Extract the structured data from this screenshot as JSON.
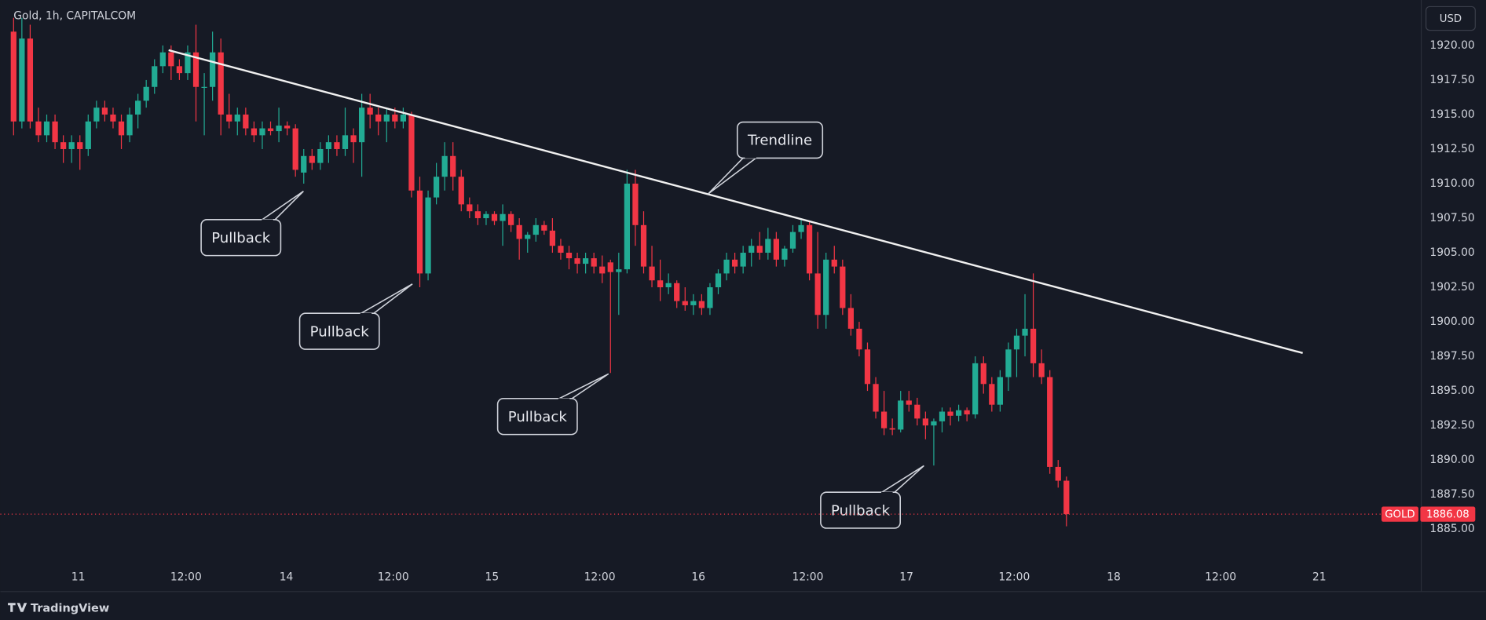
{
  "chart_data": {
    "type": "candlestick",
    "title": "Gold, 1h, CAPITALCOM",
    "currency": "USD",
    "symbol_label": "GOLD",
    "last_price": 1886.08,
    "brand": "TradingView",
    "up_color": "#22ab94",
    "down_color": "#f23645",
    "grid": false,
    "x": [
      0,
      1,
      2,
      3,
      4,
      5,
      6,
      7,
      8,
      9,
      10,
      11,
      12,
      13,
      14,
      15,
      16,
      17,
      18,
      19,
      20,
      21,
      22,
      23,
      24,
      25,
      26,
      27,
      28,
      29,
      30,
      31,
      32,
      33,
      34,
      35,
      36,
      37,
      38,
      39,
      40,
      41,
      42,
      43,
      44,
      45,
      46,
      47,
      48,
      49,
      50,
      51,
      52,
      53,
      54,
      55,
      56,
      57,
      58,
      59,
      60,
      61,
      62,
      63,
      64,
      65,
      66,
      67,
      68,
      69,
      70,
      71,
      72,
      73,
      74,
      75,
      76,
      77,
      78,
      79,
      80,
      81,
      82,
      83,
      84,
      85,
      86,
      87,
      88,
      89,
      90,
      91,
      92,
      93,
      94,
      95,
      96,
      97,
      98,
      99,
      100,
      101,
      102,
      103,
      104,
      105,
      106,
      107,
      108,
      109,
      110,
      111,
      112,
      113,
      114,
      115,
      116,
      117,
      118,
      119,
      120,
      121,
      122,
      123,
      124,
      125,
      126,
      127
    ],
    "open": [
      1921,
      1914.5,
      1920.5,
      1914.5,
      1913.5,
      1914.5,
      1913,
      1912.5,
      1913,
      1912.5,
      1914.5,
      1915.5,
      1915,
      1914.5,
      1913.5,
      1915,
      1916,
      1917,
      1918.5,
      1919.5,
      1918.5,
      1918,
      1919.5,
      1917,
      1917,
      1919.5,
      1915,
      1914.5,
      1915,
      1914,
      1913.5,
      1914,
      1913.8,
      1914.2,
      1914,
      1910.8,
      1912,
      1911.5,
      1912.5,
      1913,
      1912.5,
      1913.5,
      1913,
      1915.5,
      1915,
      1914.5,
      1915,
      1914.5,
      1915,
      1909.5,
      1903.5,
      1909,
      1910.5,
      1912,
      1910.5,
      1908.5,
      1908,
      1907.5,
      1907.8,
      1907.3,
      1907.8,
      1907,
      1906,
      1906.3,
      1907,
      1906.6,
      1905.5,
      1905,
      1904.6,
      1904.2,
      1904.6,
      1904,
      1904.3,
      1903.6,
      1903.8,
      1910,
      1907,
      1904,
      1903,
      1902.5,
      1902.8,
      1901.5,
      1901.2,
      1901.5,
      1901,
      1902.5,
      1903.5,
      1904.5,
      1904,
      1905,
      1905.5,
      1905,
      1906,
      1904.5,
      1905.3,
      1906.5,
      1907,
      1903.5,
      1900.5,
      1904.5,
      1904,
      1901,
      1899.5,
      1898,
      1895.5,
      1893.5,
      1892.3,
      1892.2,
      1894.3,
      1894,
      1893,
      1892.5,
      1892.8,
      1893.5,
      1893.2,
      1893.6,
      1893.3,
      1897,
      1895.5,
      1894,
      1896,
      1898,
      1899,
      1899.5,
      1897,
      1896,
      1889.5,
      1888.5
    ],
    "high": [
      1922,
      1922,
      1921.5,
      1915.5,
      1915,
      1915,
      1913.5,
      1913.5,
      1913.5,
      1915,
      1916,
      1916,
      1915.5,
      1915,
      1915.5,
      1916.5,
      1917.5,
      1919,
      1920,
      1920,
      1919,
      1920,
      1921.5,
      1918,
      1921,
      1920.5,
      1916.5,
      1915.5,
      1915.5,
      1914.5,
      1914.5,
      1914.5,
      1915.5,
      1914.5,
      1914.3,
      1912.5,
      1912.5,
      1913,
      1913.5,
      1913.5,
      1915.5,
      1914,
      1916.5,
      1916.5,
      1915.5,
      1915.5,
      1915.5,
      1915.5,
      1915.2,
      1910.5,
      1909.5,
      1911.5,
      1913,
      1913,
      1911,
      1909,
      1908.5,
      1908,
      1908,
      1908.5,
      1908,
      1907.5,
      1906.5,
      1907.5,
      1907.3,
      1907.5,
      1906,
      1905.5,
      1905,
      1905,
      1905,
      1904.8,
      1904.5,
      1905,
      1911,
      1911,
      1908,
      1905.5,
      1904.5,
      1903.5,
      1903,
      1902.5,
      1902,
      1902,
      1902.8,
      1903.8,
      1905,
      1905,
      1905.5,
      1906,
      1906.5,
      1906.8,
      1906.5,
      1905.5,
      1907,
      1907.5,
      1907.3,
      1906.5,
      1905,
      1905.5,
      1904.5,
      1902,
      1900,
      1898.5,
      1896,
      1895,
      1893,
      1895,
      1895,
      1894.5,
      1893.5,
      1893,
      1893.8,
      1893.8,
      1894,
      1893.8,
      1897.5,
      1897.5,
      1896,
      1896.5,
      1898.5,
      1899.5,
      1902,
      1903.5,
      1898,
      1896.5,
      1890,
      1888.8
    ],
    "low": [
      1913.5,
      1914,
      1914,
      1913,
      1913,
      1912.5,
      1911.5,
      1911.5,
      1911,
      1912,
      1914,
      1914.5,
      1914,
      1912.5,
      1913,
      1914,
      1915.5,
      1916.5,
      1918,
      1917.5,
      1917.5,
      1917.5,
      1914.5,
      1913.5,
      1916,
      1913.5,
      1914,
      1913.5,
      1913.5,
      1913,
      1912.5,
      1913.5,
      1913,
      1913.5,
      1910.5,
      1910,
      1911,
      1911,
      1911.5,
      1912,
      1912,
      1911.5,
      1910.5,
      1914,
      1913.5,
      1913,
      1914,
      1914,
      1909,
      1902.5,
      1903,
      1908.5,
      1909.5,
      1909.5,
      1908,
      1907.5,
      1907,
      1907,
      1907,
      1905.5,
      1906.5,
      1904.5,
      1905,
      1905.8,
      1906.3,
      1905,
      1904.5,
      1903.8,
      1903.5,
      1903.5,
      1903.5,
      1902.8,
      1896.3,
      1900.5,
      1903.5,
      1905.5,
      1903.5,
      1902.5,
      1901.5,
      1902,
      1901,
      1900.8,
      1900.5,
      1900.5,
      1900.5,
      1902,
      1903,
      1903.5,
      1903.5,
      1904,
      1904.5,
      1904.5,
      1904,
      1904,
      1905,
      1906,
      1903,
      1899.5,
      1899.5,
      1903.5,
      1900.5,
      1899,
      1897.5,
      1895,
      1893,
      1891.8,
      1891.8,
      1892,
      1893.5,
      1892.5,
      1891.5,
      1889.6,
      1892,
      1892.5,
      1892.8,
      1892.8,
      1893,
      1894.8,
      1893.5,
      1893.5,
      1895,
      1896,
      1897.5,
      1896,
      1895.5,
      1889,
      1888,
      1885.2
    ],
    "close": [
      1914.5,
      1920.5,
      1914.5,
      1913.5,
      1914.5,
      1913,
      1912.5,
      1913,
      1912.5,
      1914.5,
      1915.5,
      1915,
      1914.5,
      1913.5,
      1915,
      1916,
      1917,
      1918.5,
      1919.5,
      1918.5,
      1918,
      1919.5,
      1917,
      1917,
      1919.5,
      1915,
      1914.5,
      1915,
      1914,
      1913.5,
      1914,
      1913.8,
      1914.2,
      1914,
      1911,
      1912,
      1911.5,
      1912.5,
      1913,
      1912.5,
      1913.5,
      1913,
      1915.5,
      1915,
      1914.5,
      1915,
      1914.5,
      1915,
      1909.5,
      1903.5,
      1909,
      1910.5,
      1912,
      1910.5,
      1908.5,
      1908,
      1907.5,
      1907.8,
      1907.3,
      1907.8,
      1907,
      1906,
      1906.3,
      1907,
      1906.6,
      1905.5,
      1905,
      1904.6,
      1904.2,
      1904.6,
      1904,
      1903.5,
      1903.6,
      1903.8,
      1910,
      1907,
      1904,
      1903,
      1902.5,
      1902.8,
      1901.5,
      1901.2,
      1901.5,
      1901,
      1902.5,
      1903.5,
      1904.5,
      1904,
      1905,
      1905.5,
      1905,
      1906,
      1904.5,
      1905.3,
      1906.5,
      1907,
      1903.5,
      1900.5,
      1904.5,
      1904,
      1901,
      1899.5,
      1898,
      1895.5,
      1893.5,
      1892.3,
      1892.2,
      1894.3,
      1894,
      1893,
      1892.5,
      1892.8,
      1893.5,
      1893.2,
      1893.6,
      1893.3,
      1897,
      1895.5,
      1894,
      1896,
      1898,
      1899,
      1899.5,
      1897,
      1896,
      1889.5,
      1888.5,
      1886.08
    ],
    "xlim": [
      -1.6,
      169.8
    ],
    "xticks": [
      {
        "value": 7.8,
        "label": "11"
      },
      {
        "value": 20.8,
        "label": "12:00"
      },
      {
        "value": 32.9,
        "label": "14"
      },
      {
        "value": 45.8,
        "label": "12:00"
      },
      {
        "value": 57.7,
        "label": "15"
      },
      {
        "value": 70.7,
        "label": "12:00"
      },
      {
        "value": 82.6,
        "label": "16"
      },
      {
        "value": 95.8,
        "label": "12:00"
      },
      {
        "value": 107.7,
        "label": "17"
      },
      {
        "value": 120.7,
        "label": "12:00"
      },
      {
        "value": 132.7,
        "label": "18"
      },
      {
        "value": 145.6,
        "label": "12:00"
      },
      {
        "value": 157.5,
        "label": "21"
      }
    ],
    "ylim": [
      1882.53,
      1923.29
    ],
    "yticks": [
      {
        "value": 1885,
        "label": "1885.00"
      },
      {
        "value": 1887.5,
        "label": "1887.50"
      },
      {
        "value": 1890,
        "label": "1890.00"
      },
      {
        "value": 1892.5,
        "label": "1892.50"
      },
      {
        "value": 1895,
        "label": "1895.00"
      },
      {
        "value": 1897.5,
        "label": "1897.50"
      },
      {
        "value": 1900,
        "label": "1900.00"
      },
      {
        "value": 1902.5,
        "label": "1902.50"
      },
      {
        "value": 1905,
        "label": "1905.00"
      },
      {
        "value": 1907.5,
        "label": "1907.50"
      },
      {
        "value": 1910,
        "label": "1910.00"
      },
      {
        "value": 1912.5,
        "label": "1912.50"
      },
      {
        "value": 1915,
        "label": "1915.00"
      },
      {
        "value": 1917.5,
        "label": "1917.50"
      },
      {
        "value": 1920,
        "label": "1920.00"
      }
    ],
    "trendline": {
      "label": "Trendline",
      "x": [
        18.7,
        155.5
      ],
      "y": [
        1919.66,
        1897.74
      ]
    },
    "annotations": [
      {
        "text": "Pullback"
      },
      {
        "text": "Pullback"
      },
      {
        "text": "Pullback"
      },
      {
        "text": "Pullback"
      }
    ]
  }
}
